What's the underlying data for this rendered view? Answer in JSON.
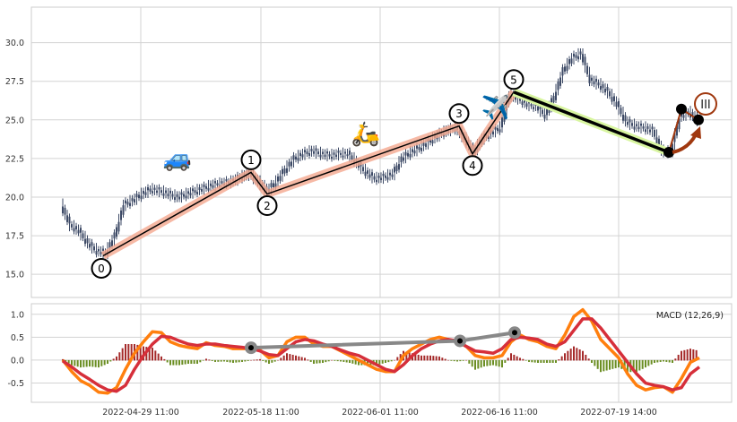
{
  "chart_data": [
    {
      "type": "candlestick",
      "panel": "price",
      "y_ticks": [
        "15.0",
        "17.5",
        "20.0",
        "22.5",
        "25.0",
        "27.5",
        "30.0"
      ],
      "ylim": [
        13.5,
        32.3
      ],
      "grid": true,
      "close": [
        19.5,
        18.2,
        17.8,
        17.0,
        16.5,
        16.4,
        17.5,
        19.5,
        19.8,
        20.2,
        20.5,
        20.4,
        20.2,
        20.0,
        20.2,
        20.4,
        20.6,
        20.8,
        20.9,
        21.0,
        21.3,
        21.5,
        21.0,
        20.4,
        21.0,
        21.8,
        22.5,
        22.8,
        23.0,
        22.8,
        22.7,
        22.8,
        22.8,
        22.2,
        21.6,
        21.2,
        21.3,
        21.5,
        22.5,
        22.9,
        23.2,
        23.6,
        24.0,
        24.3,
        24.5,
        23.8,
        22.9,
        23.8,
        24.2,
        24.5,
        26.6,
        26.4,
        26.0,
        25.9,
        25.3,
        26.5,
        28.2,
        29.0,
        29.3,
        27.6,
        27.3,
        26.8,
        26.0,
        24.9,
        24.6,
        24.5,
        24.3,
        23.0,
        22.9,
        25.2,
        25.5,
        25.0
      ],
      "candle_color": "#3d4a66",
      "pattern_points": [
        {
          "label": "0",
          "index": 4.5,
          "price": 16.2
        },
        {
          "label": "1",
          "index": 21,
          "price": 21.6
        },
        {
          "label": "2",
          "index": 22.8,
          "price": 20.2
        },
        {
          "label": "3",
          "index": 44.2,
          "price": 24.6
        },
        {
          "label": "4",
          "index": 45.7,
          "price": 22.8
        },
        {
          "label": "5",
          "index": 50.3,
          "price": 26.8
        }
      ],
      "trend_line": {
        "from": {
          "index": 50.3,
          "price": 26.8
        },
        "to": {
          "index": 67.6,
          "price": 22.9
        },
        "color": "#000000",
        "glow": "#d8f5a0"
      },
      "wave_points": [
        {
          "index": 69,
          "price": 25.7
        },
        {
          "index": 70.9,
          "price": 25.0
        }
      ],
      "wave_label": "III",
      "wave_color": "#a0380f",
      "pattern_color": "#f4a88e",
      "markers": [
        {
          "icon": "car-icon",
          "glyph": "🚙",
          "index": 12.8,
          "price": 22.0
        },
        {
          "icon": "scooter-icon",
          "glyph": "🛵",
          "index": 33.8,
          "price": 23.6
        },
        {
          "icon": "airplane-icon",
          "glyph": "✈️",
          "index": 48.3,
          "price": 25.3
        }
      ]
    },
    {
      "type": "line",
      "panel": "macd",
      "legend": "MACD (12,26,9)",
      "legend_placement": "top-right",
      "y_ticks": [
        "-0.5",
        "0.0",
        "0.5",
        "1.0"
      ],
      "ylim": [
        -0.92,
        1.23
      ],
      "x_ticks": [
        "2022-04-29 11:00",
        "2022-05-18 11:00",
        "2022-06-01 11:00",
        "2022-06-16 11:00",
        "2022-07-19 14:00"
      ],
      "grid": true,
      "series": [
        {
          "color": "#ff7f0e",
          "values": [
            0.0,
            -0.25,
            -0.45,
            -0.55,
            -0.7,
            -0.72,
            -0.6,
            -0.2,
            0.15,
            0.4,
            0.62,
            0.6,
            0.4,
            0.32,
            0.28,
            0.25,
            0.38,
            0.32,
            0.3,
            0.25,
            0.25,
            0.25,
            0.22,
            0.05,
            0.1,
            0.4,
            0.5,
            0.5,
            0.35,
            0.3,
            0.3,
            0.2,
            0.1,
            0.0,
            -0.1,
            -0.2,
            -0.25,
            -0.25,
            0.1,
            0.25,
            0.35,
            0.45,
            0.5,
            0.45,
            0.4,
            0.3,
            0.1,
            0.05,
            0.05,
            0.1,
            0.4,
            0.55,
            0.45,
            0.4,
            0.3,
            0.25,
            0.55,
            0.95,
            1.1,
            0.85,
            0.45,
            0.25,
            0.05,
            -0.3,
            -0.55,
            -0.65,
            -0.6,
            -0.58,
            -0.7,
            -0.4,
            -0.05,
            0.05
          ]
        },
        {
          "color": "#d62f3a",
          "values": [
            -0.02,
            -0.15,
            -0.3,
            -0.42,
            -0.55,
            -0.65,
            -0.68,
            -0.55,
            -0.2,
            0.1,
            0.35,
            0.52,
            0.5,
            0.42,
            0.35,
            0.32,
            0.35,
            0.35,
            0.32,
            0.3,
            0.28,
            0.25,
            0.2,
            0.12,
            0.1,
            0.25,
            0.4,
            0.45,
            0.42,
            0.35,
            0.3,
            0.22,
            0.15,
            0.1,
            0.0,
            -0.1,
            -0.2,
            -0.25,
            -0.1,
            0.1,
            0.25,
            0.35,
            0.42,
            0.45,
            0.42,
            0.3,
            0.2,
            0.18,
            0.15,
            0.25,
            0.45,
            0.5,
            0.48,
            0.45,
            0.35,
            0.3,
            0.4,
            0.65,
            0.9,
            0.9,
            0.7,
            0.45,
            0.2,
            -0.05,
            -0.3,
            -0.5,
            -0.55,
            -0.58,
            -0.65,
            -0.6,
            -0.3,
            -0.15
          ]
        }
      ],
      "histogram": {
        "pos_color": "#a52a2a",
        "neg_color": "#6b8e23",
        "values": [
          0.02,
          -0.1,
          -0.15,
          -0.13,
          -0.15,
          -0.07,
          0.08,
          0.35,
          0.35,
          0.3,
          0.27,
          0.08,
          -0.1,
          -0.1,
          -0.07,
          -0.07,
          0.03,
          -0.03,
          -0.02,
          -0.05,
          -0.03,
          0,
          0.02,
          -0.07,
          0,
          0.15,
          0.1,
          0.05,
          -0.07,
          -0.05,
          0,
          -0.02,
          -0.05,
          -0.1,
          -0.1,
          -0.1,
          -0.05,
          0,
          0.2,
          0.15,
          0.1,
          0.1,
          0.08,
          0,
          -0.02,
          0,
          -0.2,
          -0.13,
          -0.1,
          -0.15,
          0.15,
          0.05,
          -0.03,
          -0.05,
          -0.05,
          -0.05,
          0.15,
          0.3,
          0.2,
          -0.05,
          -0.25,
          -0.2,
          -0.15,
          -0.25,
          -0.25,
          -0.15,
          -0.05,
          -0.02,
          -0.05,
          0.2,
          0.25,
          0.2
        ]
      },
      "divergence_points": [
        {
          "index": 21,
          "value": 0.27
        },
        {
          "index": 44.3,
          "value": 0.42
        },
        {
          "index": 50.4,
          "value": 0.6
        }
      ],
      "divergence_color": "#888888"
    }
  ]
}
